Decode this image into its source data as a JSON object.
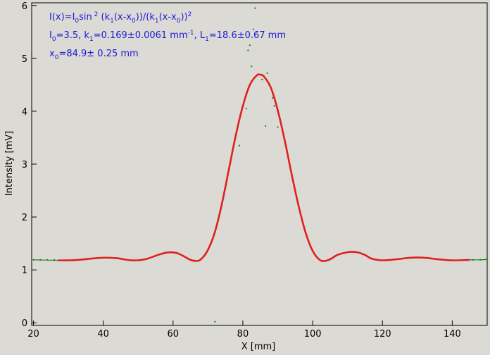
{
  "chart_data": {
    "type": "line",
    "title": "",
    "xlabel": "X [mm]",
    "ylabel": "Intensity [mV]",
    "xlim": [
      19.5,
      150
    ],
    "ylim": [
      -0.05,
      6.05
    ],
    "xticks": [
      "20",
      "40",
      "60",
      "80",
      "100",
      "120",
      "140"
    ],
    "yticks": [
      "0",
      "1",
      "2",
      "3",
      "4",
      "5",
      "6"
    ],
    "grid": false,
    "colors": {
      "fit": "#e0201c",
      "data": "#1e7a1e",
      "background": "#dcdad5",
      "annotation": "#1a1ad8"
    },
    "annotations": {
      "line1": {
        "a": "I(x)=I",
        "a_sub": "0",
        "b": "sin",
        "b_sup": " 2",
        "c": " (k",
        "c_sub": "1",
        "d": "(x-x",
        "d_sub": "0",
        "e": "))/(k",
        "e_sub": "1",
        "f": "(x-x",
        "f_sub": "0",
        "g": "))",
        "g_sup": "2"
      },
      "line2": {
        "a": "I",
        "a_sub": "0",
        "b": "=3.5,  k",
        "b_sub": "1",
        "c": "=0.169±0.0061 mm",
        "c_sup": "-1",
        "d": ",   L",
        "d_sub": "1",
        "e": "=18.6±0.67 mm"
      },
      "line3": {
        "a": "x",
        "a_sub": "0",
        "b": "=84.9±   0.25 mm"
      }
    },
    "series": [
      {
        "role": "fit",
        "x": [
          27,
          30,
          33,
          36,
          40,
          44,
          48,
          52,
          56,
          58.5,
          61,
          63,
          65,
          66.5,
          68,
          70,
          72,
          74,
          76,
          78,
          80,
          82,
          84,
          85,
          86,
          88,
          90,
          92,
          94,
          96,
          98,
          100,
          102,
          103.5,
          105,
          107,
          109,
          111,
          113,
          115,
          117,
          120,
          124,
          128,
          132,
          136,
          140,
          145
        ],
        "y": [
          1.18,
          1.18,
          1.19,
          1.21,
          1.23,
          1.22,
          1.18,
          1.2,
          1.29,
          1.33,
          1.32,
          1.26,
          1.19,
          1.17,
          1.2,
          1.38,
          1.72,
          2.25,
          2.9,
          3.55,
          4.1,
          4.5,
          4.68,
          4.69,
          4.66,
          4.45,
          4.02,
          3.45,
          2.8,
          2.2,
          1.7,
          1.36,
          1.19,
          1.17,
          1.2,
          1.28,
          1.32,
          1.34,
          1.33,
          1.28,
          1.21,
          1.18,
          1.2,
          1.23,
          1.23,
          1.2,
          1.18,
          1.19
        ]
      },
      {
        "role": "data",
        "x": [
          20,
          22,
          24,
          26,
          40,
          66,
          72,
          79,
          81,
          81.5,
          82,
          82.5,
          83,
          83.5,
          84,
          85.5,
          86.5,
          87,
          87.5,
          88.5,
          89,
          90,
          103,
          121,
          140,
          142,
          144,
          146,
          148,
          150
        ],
        "y": [
          1.19,
          1.19,
          1.19,
          1.19,
          1.23,
          1.18,
          0.02,
          3.35,
          4.05,
          5.15,
          5.25,
          4.85,
          5.55,
          5.95,
          5.5,
          4.6,
          3.72,
          4.72,
          4.5,
          4.25,
          4.1,
          3.7,
          1.17,
          1.18,
          1.18,
          1.18,
          1.18,
          1.19,
          1.19,
          1.2
        ]
      }
    ]
  }
}
